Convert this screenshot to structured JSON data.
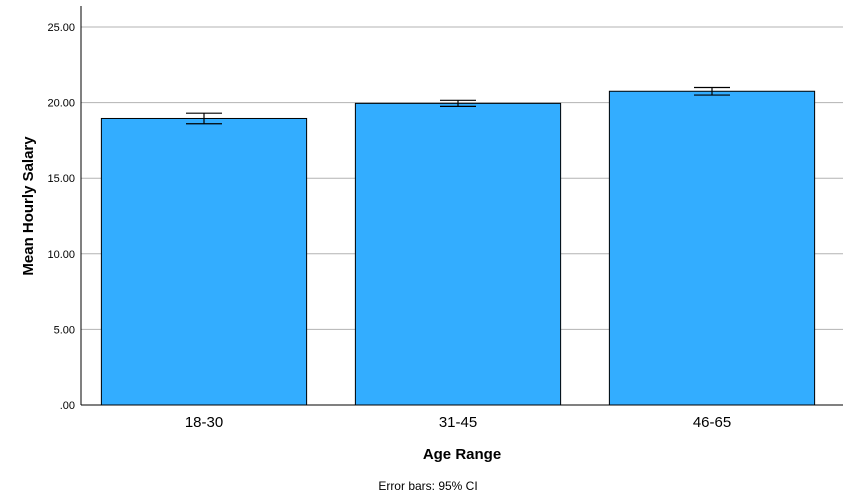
{
  "chart_data": {
    "type": "bar",
    "categories": [
      "18-30",
      "31-45",
      "46-65"
    ],
    "values": [
      18.95,
      19.95,
      20.75
    ],
    "error_bars": [
      {
        "low": 18.6,
        "high": 19.3
      },
      {
        "low": 19.75,
        "high": 20.15
      },
      {
        "low": 20.5,
        "high": 21.0
      }
    ],
    "title": "",
    "xlabel": "Age Range",
    "ylabel": "Mean Hourly Salary",
    "ylim": [
      0,
      25
    ],
    "yticks": [
      0,
      5,
      10,
      15,
      20,
      25
    ],
    "ytick_labels": [
      ".00",
      "5.00",
      "10.00",
      "15.00",
      "20.00",
      "25.00"
    ],
    "footnote": "Error bars: 95% CI",
    "grid": true,
    "legend": "none",
    "bar_color": "#33adff",
    "bar_edge_color": "#000000",
    "grid_color": "#b3b3b3"
  }
}
